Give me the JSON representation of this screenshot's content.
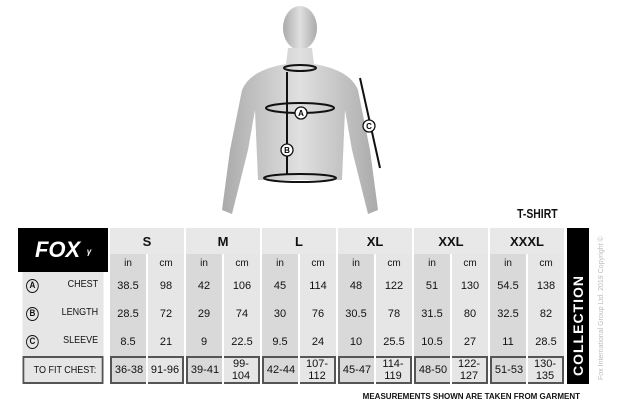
{
  "title": "T-SHIRT",
  "brand": "FOX",
  "collection": "COLLECTION",
  "copyright": "Fox International Group Ltd. 2019 Copyright ©",
  "note": "MEASUREMENTS SHOWN ARE TAKEN FROM GARMENT",
  "figure_markers": [
    "A",
    "B",
    "C"
  ],
  "sizes": [
    "S",
    "M",
    "L",
    "XL",
    "XXL",
    "XXXL"
  ],
  "units": [
    "in",
    "cm"
  ],
  "rows": [
    {
      "marker": "A",
      "label": "CHEST",
      "values": [
        "38.5",
        "98",
        "42",
        "106",
        "45",
        "114",
        "48",
        "122",
        "51",
        "130",
        "54.5",
        "138"
      ]
    },
    {
      "marker": "B",
      "label": "LENGTH",
      "values": [
        "28.5",
        "72",
        "29",
        "74",
        "30",
        "76",
        "30.5",
        "78",
        "31.5",
        "80",
        "32.5",
        "82"
      ]
    },
    {
      "marker": "C",
      "label": "SLEEVE",
      "values": [
        "8.5",
        "21",
        "9",
        "22.5",
        "9.5",
        "24",
        "10",
        "25.5",
        "10.5",
        "27",
        "11",
        "28.5"
      ]
    }
  ],
  "fit": {
    "label": "TO FIT CHEST:",
    "values": [
      "36-38",
      "91-96",
      "39-41",
      "99-104",
      "42-44",
      "107-112",
      "45-47",
      "114-119",
      "48-50",
      "122-127",
      "51-53",
      "130-135"
    ]
  }
}
